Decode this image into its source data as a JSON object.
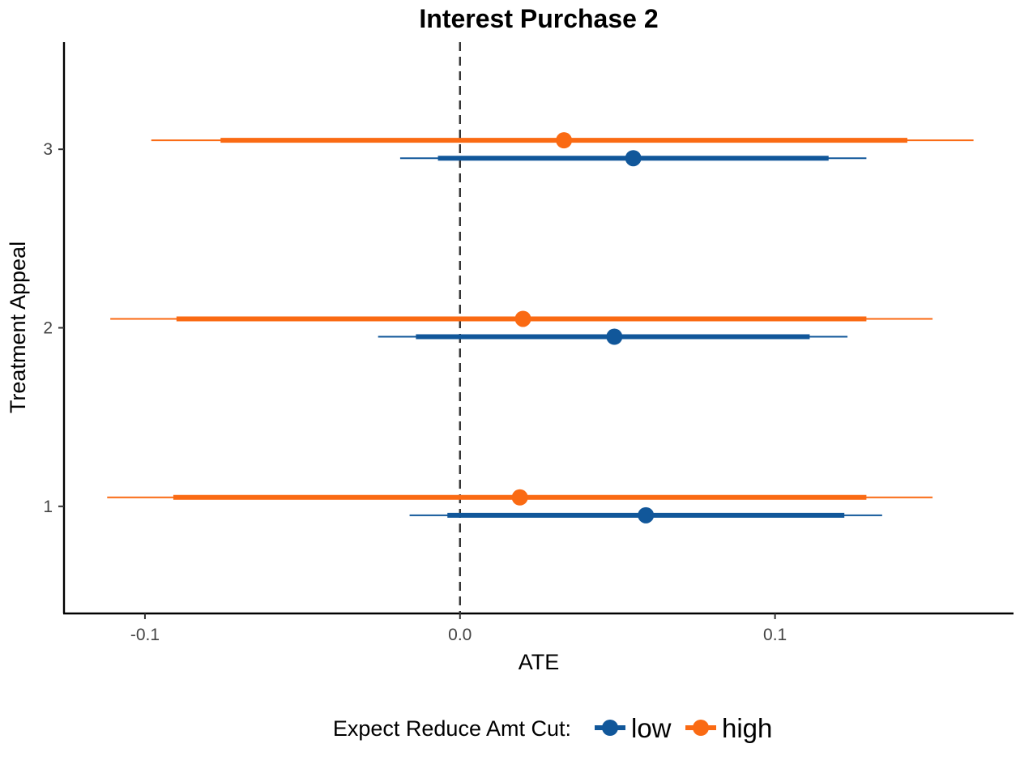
{
  "chart_data": {
    "type": "forest",
    "title": "Interest Purchase 2",
    "xlabel": "ATE",
    "ylabel": "Treatment Appeal",
    "xlim": [
      -0.1257,
      0.1757
    ],
    "ylim": [
      0.4,
      3.6
    ],
    "x_ticks": [
      {
        "value": -0.1,
        "label": "-0.1"
      },
      {
        "value": 0.0,
        "label": "0.0"
      },
      {
        "value": 0.1,
        "label": "0.1"
      }
    ],
    "y_ticks": [
      {
        "value": 1,
        "label": "1"
      },
      {
        "value": 2,
        "label": "2"
      },
      {
        "value": 3,
        "label": "3"
      }
    ],
    "reference_line": {
      "x": 0,
      "style": "dashed"
    },
    "legend": {
      "title": "Expect Reduce Amt Cut:",
      "position": "bottom"
    },
    "series": [
      {
        "name": "low",
        "color": "#11579a",
        "offset": -0.05,
        "points": [
          {
            "category": 1,
            "estimate": 0.059,
            "ci_inner": [
              -0.004,
              0.122
            ],
            "ci_outer": [
              -0.016,
              0.134
            ]
          },
          {
            "category": 2,
            "estimate": 0.049,
            "ci_inner": [
              -0.014,
              0.111
            ],
            "ci_outer": [
              -0.026,
              0.123
            ]
          },
          {
            "category": 3,
            "estimate": 0.055,
            "ci_inner": [
              -0.007,
              0.117
            ],
            "ci_outer": [
              -0.019,
              0.129
            ]
          }
        ]
      },
      {
        "name": "high",
        "color": "#fa6a13",
        "offset": 0.05,
        "points": [
          {
            "category": 1,
            "estimate": 0.019,
            "ci_inner": [
              -0.091,
              0.129
            ],
            "ci_outer": [
              -0.112,
              0.15
            ]
          },
          {
            "category": 2,
            "estimate": 0.02,
            "ci_inner": [
              -0.09,
              0.129
            ],
            "ci_outer": [
              -0.111,
              0.15
            ]
          },
          {
            "category": 3,
            "estimate": 0.033,
            "ci_inner": [
              -0.076,
              0.142
            ],
            "ci_outer": [
              -0.098,
              0.163
            ]
          }
        ]
      }
    ]
  }
}
